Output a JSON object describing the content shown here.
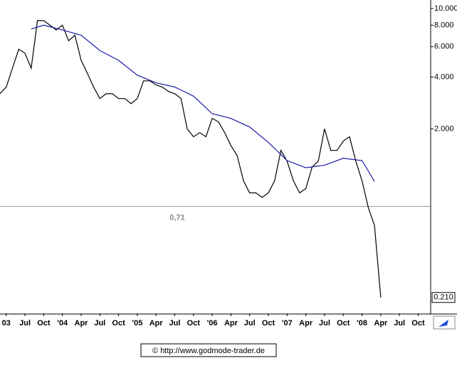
{
  "chart_data": {
    "type": "line",
    "log_scale": true,
    "xlim": [
      "2003-03",
      "2008-12"
    ],
    "ylim": [
      0.17,
      11.2
    ],
    "xticks": [
      {
        "value": "2003-04",
        "label": "03"
      },
      {
        "value": "2003-07",
        "label": "Jul"
      },
      {
        "value": "2003-10",
        "label": "Oct"
      },
      {
        "value": "2004-01",
        "label": "'04"
      },
      {
        "value": "2004-04",
        "label": "Apr"
      },
      {
        "value": "2004-07",
        "label": "Jul"
      },
      {
        "value": "2004-10",
        "label": "Oct"
      },
      {
        "value": "2005-01",
        "label": "'05"
      },
      {
        "value": "2005-04",
        "label": "Apr"
      },
      {
        "value": "2005-07",
        "label": "Jul"
      },
      {
        "value": "2005-10",
        "label": "Oct"
      },
      {
        "value": "2006-01",
        "label": "'06"
      },
      {
        "value": "2006-04",
        "label": "Apr"
      },
      {
        "value": "2006-07",
        "label": "Jul"
      },
      {
        "value": "2006-10",
        "label": "Oct"
      },
      {
        "value": "2007-01",
        "label": "'07"
      },
      {
        "value": "2007-04",
        "label": "Apr"
      },
      {
        "value": "2007-07",
        "label": "Jul"
      },
      {
        "value": "2007-10",
        "label": "Oct"
      },
      {
        "value": "2008-01",
        "label": "'08"
      },
      {
        "value": "2008-04",
        "label": "Apr"
      },
      {
        "value": "2008-07",
        "label": "Jul"
      },
      {
        "value": "2008-10",
        "label": "Oct"
      }
    ],
    "yticks": [
      {
        "value": 10,
        "label": "10.000"
      },
      {
        "value": 8,
        "label": "8.000"
      },
      {
        "value": 6,
        "label": "6.000"
      },
      {
        "value": 4,
        "label": "4.000"
      },
      {
        "value": 2,
        "label": "2.000"
      }
    ],
    "series": [
      {
        "color": "#000000",
        "x": [
          "2003-03",
          "2003-04",
          "2003-05",
          "2003-06",
          "2003-07",
          "2003-08",
          "2003-09",
          "2003-10",
          "2003-11",
          "2003-12",
          "2004-01",
          "2004-02",
          "2004-03",
          "2004-04",
          "2004-05",
          "2004-06",
          "2004-07",
          "2004-08",
          "2004-09",
          "2004-10",
          "2004-11",
          "2004-12",
          "2005-01",
          "2005-02",
          "2005-03",
          "2005-04",
          "2005-05",
          "2005-06",
          "2005-07",
          "2005-08",
          "2005-09",
          "2005-10",
          "2005-11",
          "2005-12",
          "2006-01",
          "2006-02",
          "2006-03",
          "2006-04",
          "2006-05",
          "2006-06",
          "2006-07",
          "2006-08",
          "2006-09",
          "2006-10",
          "2006-11",
          "2006-12",
          "2007-01",
          "2007-02",
          "2007-03",
          "2007-04",
          "2007-05",
          "2007-06",
          "2007-07",
          "2007-08",
          "2007-09",
          "2007-10",
          "2007-11",
          "2007-12",
          "2008-01",
          "2008-02",
          "2008-03",
          "2008-04"
        ],
        "values": [
          3.2,
          3.5,
          4.5,
          5.8,
          5.5,
          4.5,
          8.5,
          8.5,
          8.0,
          7.5,
          8.0,
          6.5,
          7.0,
          5.0,
          4.2,
          3.5,
          3.0,
          3.2,
          3.2,
          3.0,
          3.0,
          2.8,
          3.0,
          3.8,
          3.8,
          3.6,
          3.5,
          3.3,
          3.2,
          3.0,
          2.0,
          1.8,
          1.9,
          1.8,
          2.3,
          2.2,
          1.9,
          1.6,
          1.4,
          1.0,
          0.85,
          0.85,
          0.8,
          0.85,
          1.0,
          1.5,
          1.3,
          1.0,
          0.85,
          0.9,
          1.2,
          1.3,
          2.0,
          1.5,
          1.5,
          1.7,
          1.8,
          1.3,
          1.0,
          0.7,
          0.55,
          0.21
        ]
      },
      {
        "color": "#1a1aa8",
        "x": [
          "2003-08",
          "2003-10",
          "2004-01",
          "2004-04",
          "2004-07",
          "2004-10",
          "2005-01",
          "2005-04",
          "2005-07",
          "2005-10",
          "2006-01",
          "2006-04",
          "2006-07",
          "2006-10",
          "2007-01",
          "2007-04",
          "2007-07",
          "2007-10",
          "2008-01",
          "2008-03"
        ],
        "values": [
          7.6,
          8.0,
          7.5,
          7.0,
          5.7,
          5.0,
          4.1,
          3.7,
          3.5,
          3.1,
          2.45,
          2.3,
          2.05,
          1.67,
          1.31,
          1.19,
          1.23,
          1.35,
          1.31,
          0.99
        ]
      }
    ],
    "level": 0.71,
    "level_label": "0,71",
    "last_price": 0.21,
    "last_price_label": "0.210",
    "footer": "© http://www.godmode-trader.de"
  }
}
